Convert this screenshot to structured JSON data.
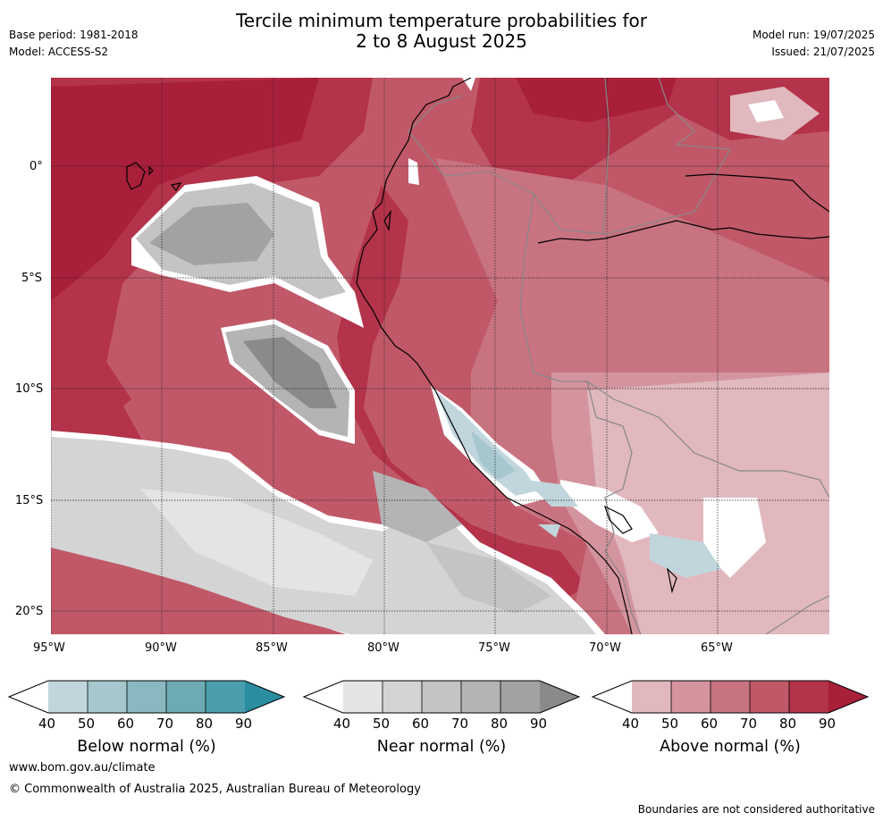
{
  "header": {
    "title_line1": "Tercile minimum temperature probabilities for",
    "title_line2": "2 to 8 August 2025",
    "base_period": "Base period: 1981-2018",
    "model": "Model: ACCESS-S2",
    "model_run": "Model run: 19/07/2025",
    "issued": "Issued: 21/07/2025"
  },
  "map": {
    "lat_labels": [
      "0°",
      "5°S",
      "10°S",
      "15°S",
      "20°S"
    ],
    "lon_labels": [
      "95°W",
      "90°W",
      "85°W",
      "80°W",
      "75°W",
      "70°W",
      "65°W"
    ]
  },
  "colorbars": [
    {
      "title": "Below normal (%)",
      "ticks": [
        "40",
        "50",
        "60",
        "70",
        "80",
        "90"
      ],
      "colors": [
        "#ffffff",
        "#c0d6dc",
        "#a6c7cd",
        "#8ab8c0",
        "#6eaab4",
        "#4a9dac",
        "#2b8ea0"
      ]
    },
    {
      "title": "Near normal (%)",
      "ticks": [
        "40",
        "50",
        "60",
        "70",
        "80",
        "90"
      ],
      "colors": [
        "#ffffff",
        "#e4e4e4",
        "#d4d4d4",
        "#c4c4c4",
        "#b4b4b4",
        "#a2a2a2",
        "#8a8a8a"
      ]
    },
    {
      "title": "Above normal (%)",
      "ticks": [
        "40",
        "50",
        "60",
        "70",
        "80",
        "90"
      ],
      "colors": [
        "#ffffff",
        "#e0b8be",
        "#d4949e",
        "#c87380",
        "#c05868",
        "#b3334a",
        "#a81f3a"
      ]
    }
  ],
  "footer": {
    "website": "www.bom.gov.au/climate",
    "copyright": "© Commonwealth of Australia 2025, Australian Bureau of Meteorology",
    "disclaimer": "Boundaries are not considered authoritative"
  }
}
